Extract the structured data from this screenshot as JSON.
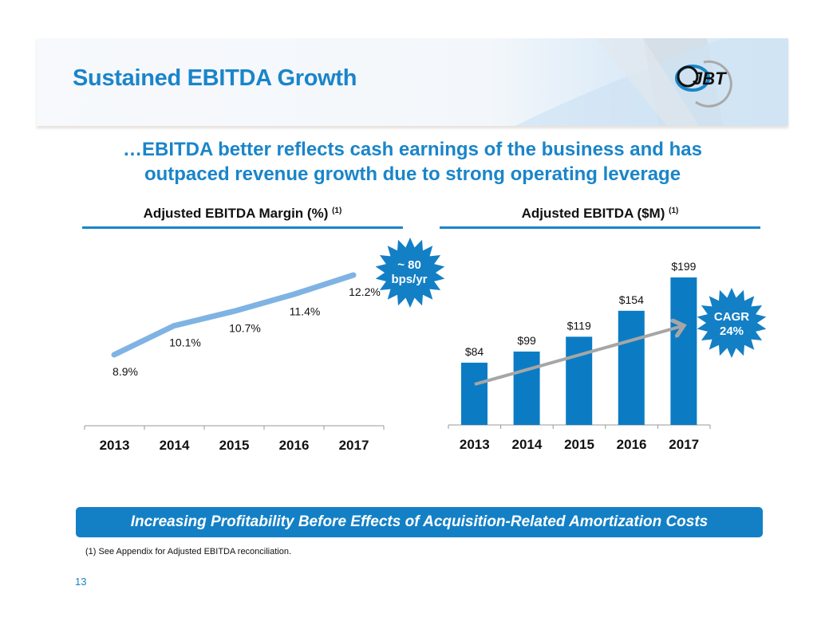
{
  "header": {
    "title": "Sustained EBITDA Growth",
    "logo_text": "JBT",
    "subtitle_line1": "…EBITDA better reflects cash earnings of the business and has",
    "subtitle_line2": "outpaced revenue growth due to strong operating leverage"
  },
  "colors": {
    "brand_blue": "#1a85c9",
    "bar_blue": "#0b7cc4",
    "line_blue": "#7fb3e3",
    "arrow_gray": "#a6a6a6",
    "burst_blue": "#137fc5"
  },
  "chart_data": [
    {
      "type": "line",
      "title": "Adjusted EBITDA Margin  (%)",
      "title_footnote": "(1)",
      "categories": [
        "2013",
        "2014",
        "2015",
        "2016",
        "2017"
      ],
      "values": [
        8.9,
        10.1,
        10.7,
        11.4,
        12.2
      ],
      "data_labels": [
        "8.9%",
        "10.1%",
        "10.7%",
        "11.4%",
        "12.2%"
      ],
      "unit": "%",
      "xlabel": "",
      "ylabel": "",
      "grid": false,
      "annotation": {
        "line1": "~ 80",
        "line2": "bps/yr"
      }
    },
    {
      "type": "bar",
      "title": "Adjusted EBITDA ($M)",
      "title_footnote": "(1)",
      "categories": [
        "2013",
        "2014",
        "2015",
        "2016",
        "2017"
      ],
      "values": [
        84,
        99,
        119,
        154,
        199
      ],
      "data_labels": [
        "$84",
        "$99",
        "$119",
        "$154",
        "$199"
      ],
      "unit": "$M",
      "xlabel": "",
      "ylabel": "",
      "grid": false,
      "annotation": {
        "line1": "CAGR",
        "line2": "24%"
      },
      "trend_arrow": true
    }
  ],
  "banner": "Increasing Profitability Before Effects of Acquisition-Related Amortization Costs",
  "footnote": "(1) See Appendix for Adjusted EBITDA reconciliation.",
  "page_number": "13"
}
